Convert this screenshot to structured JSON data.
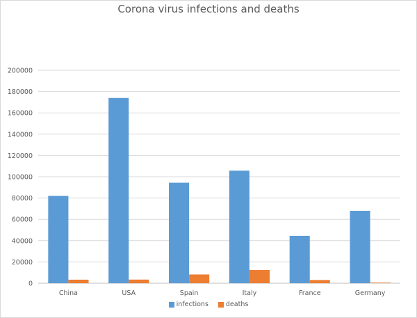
{
  "chart_data": {
    "type": "bar",
    "title": "Corona virus infections and deaths",
    "xlabel": "",
    "ylabel": "",
    "categories": [
      "China",
      "USA",
      "Spain",
      "Italy",
      "France",
      "Germany"
    ],
    "series": [
      {
        "name": "infections",
        "color": "#5b9bd5",
        "values": [
          82000,
          174000,
          94400,
          105700,
          44500,
          68000
        ]
      },
      {
        "name": "deaths",
        "color": "#ed7d31",
        "values": [
          3300,
          3400,
          8200,
          12400,
          3000,
          600
        ]
      }
    ],
    "ylim": [
      0,
      200000
    ],
    "yticks": [
      "0",
      "20000",
      "40000",
      "60000",
      "80000",
      "100000",
      "120000",
      "140000",
      "160000",
      "180000",
      "200000"
    ],
    "grid": true,
    "legend_position": "bottom"
  }
}
